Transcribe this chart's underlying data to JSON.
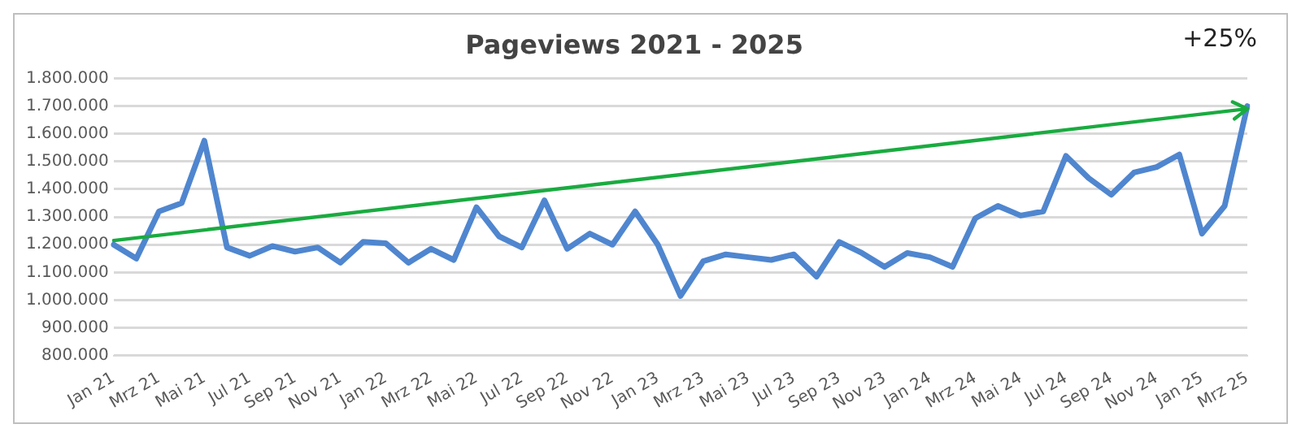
{
  "chart_data": {
    "type": "line",
    "title": "Pageviews 2021 - 2025",
    "annotations": [
      "+25%"
    ],
    "categories": [
      "Jan 21",
      null,
      "Mrz 21",
      null,
      "Mai 21",
      null,
      "Jul 21",
      null,
      "Sep 21",
      null,
      "Nov 21",
      null,
      "Jan 22",
      null,
      "Mrz 22",
      null,
      "Mai 22",
      null,
      "Jul 22",
      null,
      "Sep 22",
      null,
      "Nov 22",
      null,
      "Jan 23",
      null,
      "Mrz 23",
      null,
      "Mai 23",
      null,
      "Jul 23",
      null,
      "Sep 23",
      null,
      "Nov 23",
      null,
      "Jan 24",
      null,
      "Mrz 24",
      null,
      "Mai 24",
      null,
      "Jul 24",
      null,
      "Sep 24",
      null,
      "Nov 24",
      null,
      "Jan 25",
      null,
      "Mrz 25"
    ],
    "series": [
      {
        "color": "#4f86cf",
        "values": [
          1200000,
          1150000,
          1320000,
          1350000,
          1575000,
          1190000,
          1160000,
          1195000,
          1175000,
          1190000,
          1135000,
          1210000,
          1205000,
          1135000,
          1185000,
          1145000,
          1335000,
          1230000,
          1190000,
          1360000,
          1185000,
          1240000,
          1200000,
          1320000,
          1200000,
          1015000,
          1140000,
          1165000,
          1155000,
          1145000,
          1165000,
          1085000,
          1210000,
          1170000,
          1120000,
          1170000,
          1155000,
          1120000,
          1295000,
          1340000,
          1305000,
          1320000,
          1520000,
          1440000,
          1380000,
          1460000,
          1480000,
          1525000,
          1240000,
          1340000,
          1700000
        ]
      },
      {
        "type": "line",
        "color": "#1aab40",
        "x": [
          "Jan 21",
          "Mrz 25"
        ],
        "values": [
          1215000,
          1690000
        ]
      }
    ],
    "ylim": [
      800000,
      1800000
    ],
    "yticks": [
      {
        "value": 800000,
        "label": "800.000"
      },
      {
        "value": 900000,
        "label": "900.000"
      },
      {
        "value": 1000000,
        "label": "1.000.000"
      },
      {
        "value": 1100000,
        "label": "1.100.000"
      },
      {
        "value": 1200000,
        "label": "1.200.000"
      },
      {
        "value": 1300000,
        "label": "1.300.000"
      },
      {
        "value": 1400000,
        "label": "1.400.000"
      },
      {
        "value": 1500000,
        "label": "1.500.000"
      },
      {
        "value": 1600000,
        "label": "1.600.000"
      },
      {
        "value": 1700000,
        "label": "1.700.000"
      },
      {
        "value": 1800000,
        "label": "1.800.000"
      }
    ],
    "grid": "y",
    "line_style": "solid"
  }
}
